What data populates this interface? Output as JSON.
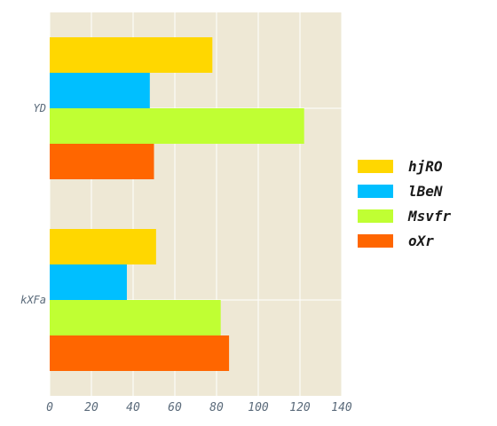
{
  "chart_data": {
    "type": "bar",
    "orientation": "horizontal",
    "categories": [
      "YD",
      "kXFa"
    ],
    "series": [
      {
        "name": "hjRO",
        "color": "#FFD700",
        "values": [
          78,
          51
        ]
      },
      {
        "name": "lBeN",
        "color": "#00BFFF",
        "values": [
          48,
          37
        ]
      },
      {
        "name": "Msvfr",
        "color": "#C0FF33",
        "values": [
          122,
          82
        ]
      },
      {
        "name": "oXr",
        "color": "#FF6600",
        "values": [
          50,
          86
        ]
      }
    ],
    "xlim": [
      0,
      140
    ],
    "xticks": [
      0,
      20,
      40,
      60,
      80,
      100,
      120,
      140
    ],
    "grid": true,
    "legend": "right",
    "plot_background": "#EEE8D5"
  }
}
